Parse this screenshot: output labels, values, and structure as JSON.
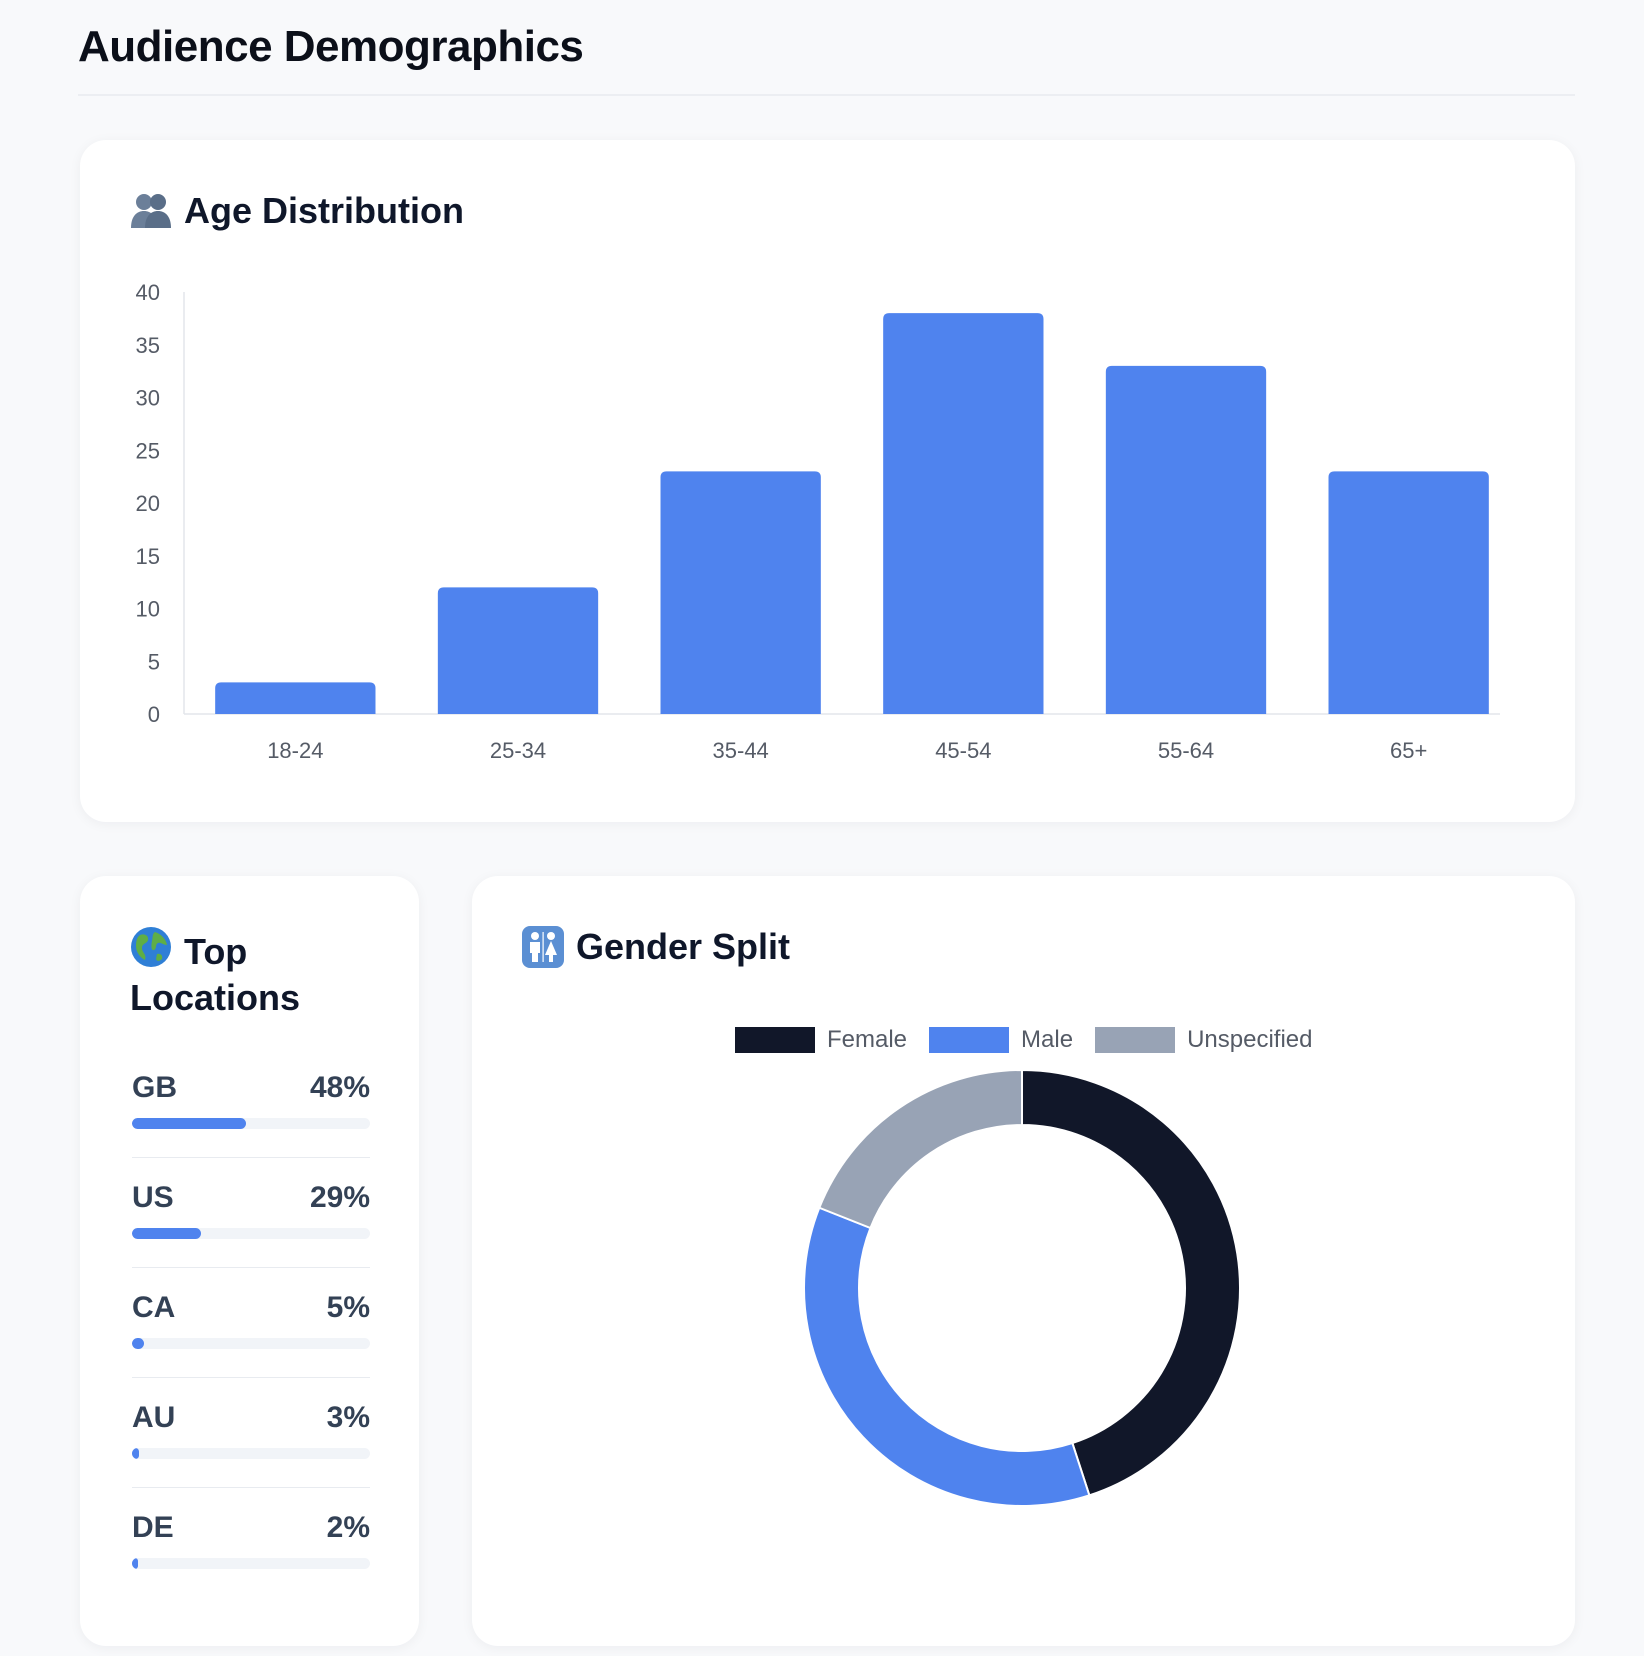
{
  "header": {
    "title": "Audience Demographics"
  },
  "age_card": {
    "title": "Age Distribution",
    "icon": "people-icon"
  },
  "locations_card": {
    "title_line1": "Top",
    "title_line2": "Locations",
    "icon": "globe-icon",
    "items": [
      {
        "code": "GB",
        "percent_label": "48%",
        "percent": 48
      },
      {
        "code": "US",
        "percent_label": "29%",
        "percent": 29
      },
      {
        "code": "CA",
        "percent_label": "5%",
        "percent": 5
      },
      {
        "code": "AU",
        "percent_label": "3%",
        "percent": 3
      },
      {
        "code": "DE",
        "percent_label": "2%",
        "percent": 2
      }
    ]
  },
  "gender_card": {
    "title": "Gender Split",
    "icon": "restroom-icon"
  },
  "colors": {
    "accent": "#4f83ee",
    "dark": "#111729",
    "gray": "#98a3b5"
  },
  "chart_data": [
    {
      "type": "bar",
      "title": "Age Distribution",
      "categories": [
        "18-24",
        "25-34",
        "35-44",
        "45-54",
        "55-64",
        "65+"
      ],
      "values": [
        3,
        12,
        23,
        38,
        33,
        23
      ],
      "ylim": [
        0,
        40
      ],
      "yticks": [
        0,
        5,
        10,
        15,
        20,
        25,
        30,
        35,
        40
      ],
      "xlabel": "",
      "ylabel": "",
      "grid": false,
      "color": "#4f83ee"
    },
    {
      "type": "pie",
      "variant": "doughnut",
      "title": "Gender Split",
      "legend_position": "top",
      "labels": [
        "Female",
        "Male",
        "Unspecified"
      ],
      "values": [
        45,
        36,
        19
      ],
      "colors": [
        "#111729",
        "#4f83ee",
        "#98a3b5"
      ]
    }
  ]
}
